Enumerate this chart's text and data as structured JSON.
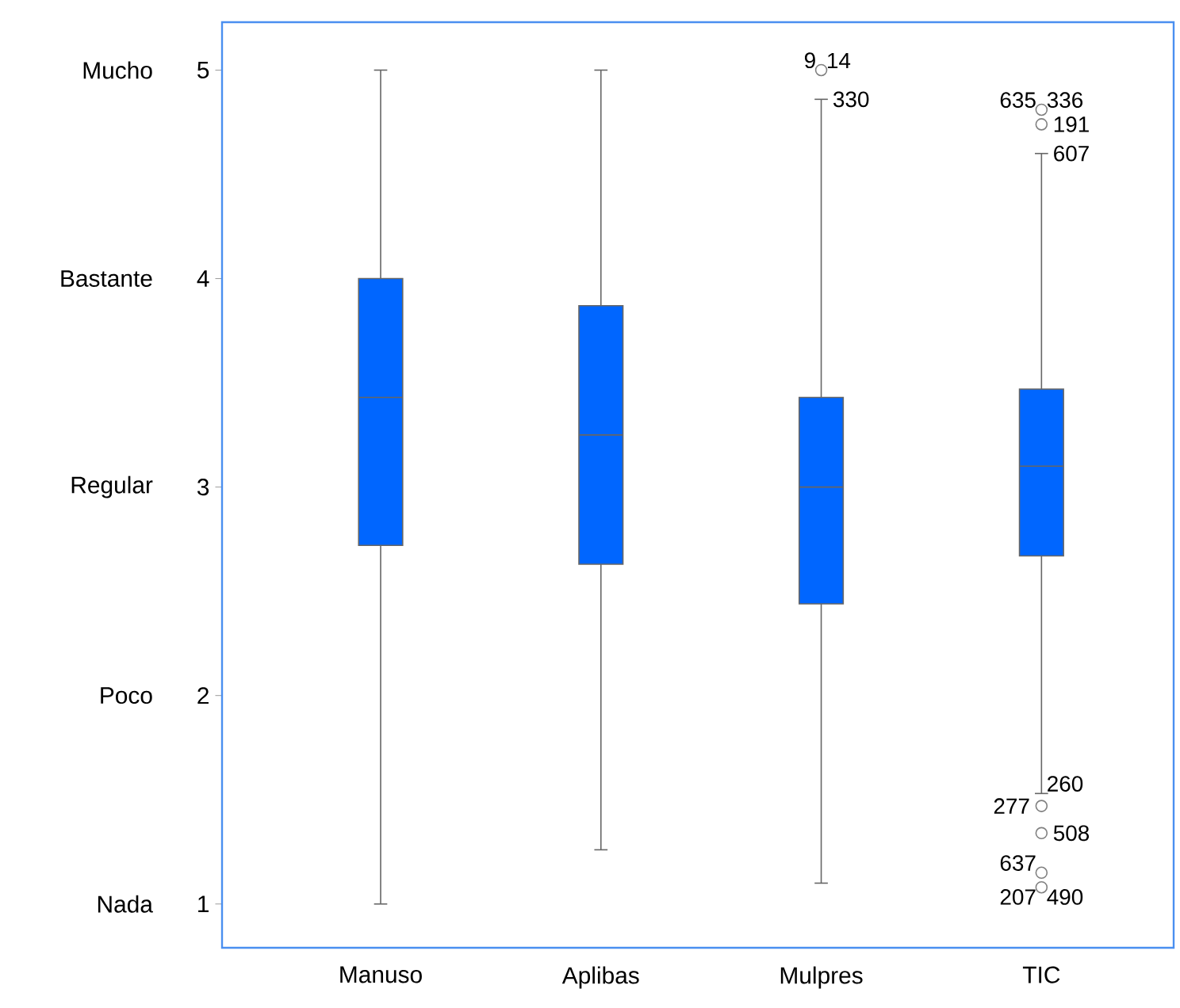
{
  "chart_data": {
    "type": "box",
    "categories": [
      "Manuso",
      "Aplibas",
      "Mulpres",
      "TIC"
    ],
    "color": "#0066ff",
    "boxes": [
      {
        "low": 1,
        "q1": 2.72,
        "median": 3.43,
        "q3": 4.0,
        "high": 5
      },
      {
        "low": 1.26,
        "q1": 2.63,
        "median": 3.25,
        "q3": 3.87,
        "high": 5
      },
      {
        "low": 1.1,
        "q1": 2.44,
        "median": 3.0,
        "q3": 3.43,
        "high": 4.86,
        "outliers": [
          5
        ]
      },
      {
        "low": 1.53,
        "q1": 2.67,
        "median": 3.1,
        "q3": 3.47,
        "high": 4.6,
        "outliers": [
          4.81,
          4.74,
          1.47,
          1.34,
          1.15,
          1.08
        ]
      }
    ],
    "ylim": [
      0.79,
      5.23
    ],
    "yticks": [
      1,
      2,
      3,
      4,
      5
    ],
    "grid": false,
    "annotations": [
      "Nada",
      "Poco",
      "Regular",
      "Bastante",
      "Mucho",
      "9",
      "14",
      "330",
      "635",
      "336",
      "191",
      "277",
      "508",
      "637",
      "607",
      "260",
      "207",
      "490"
    ]
  }
}
